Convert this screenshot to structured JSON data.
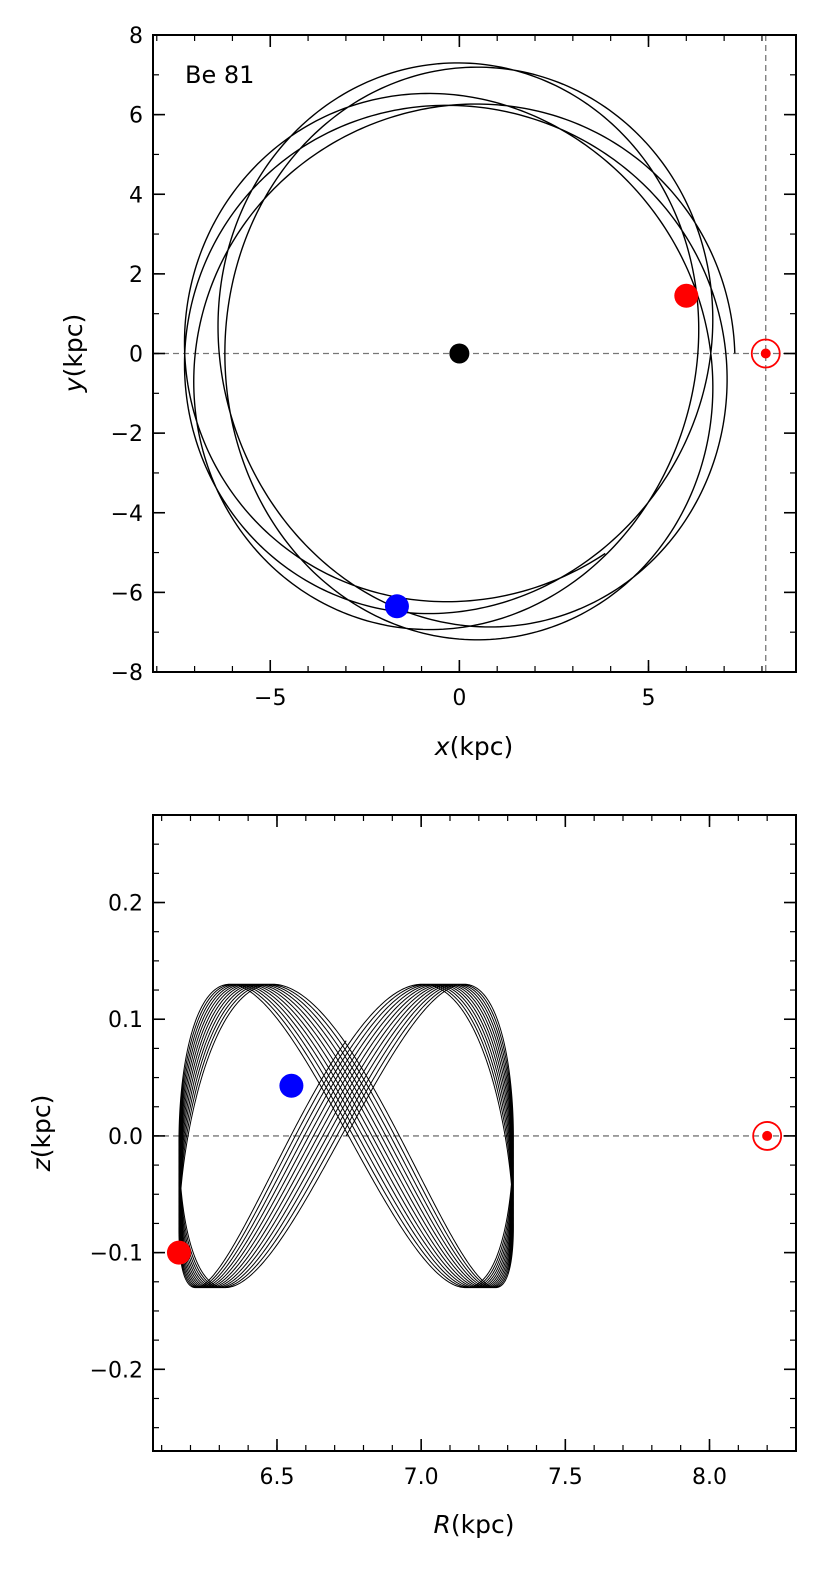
{
  "chart_data": [
    {
      "type": "line",
      "panel_label": "Be 81",
      "xlabel_var": "x",
      "xlabel_unit": "(kpc)",
      "ylabel_var": "y",
      "ylabel_unit": "(kpc)",
      "xlim": [
        -8.1,
        8.9
      ],
      "ylim": [
        -8,
        8
      ],
      "xticks": [
        -5,
        0,
        5
      ],
      "xtick_labels": [
        "−5",
        "0",
        "5"
      ],
      "yticks": [
        -8,
        -6,
        -4,
        -2,
        0,
        2,
        4,
        6,
        8
      ],
      "ytick_labels": [
        "−8",
        "−6",
        "−4",
        "−2",
        "0",
        "2",
        "4",
        "6",
        "8"
      ],
      "orbit": {
        "type": "rosette",
        "r_min": 6.2,
        "r_max": 7.3,
        "color": "#000000"
      },
      "galactic_center": {
        "x": 0,
        "y": 0,
        "color": "#000000"
      },
      "start_point": {
        "x": 6.0,
        "y": 1.45,
        "color": "#ff0000"
      },
      "end_point": {
        "x": -1.65,
        "y": -6.35,
        "color": "#0000ff"
      },
      "sun": {
        "x": 8.1,
        "y": 0,
        "color": "#ff0000"
      },
      "reference_lines": {
        "y0": true,
        "x_sun": 8.1,
        "color": "#777777",
        "style": "dashed"
      }
    },
    {
      "type": "line",
      "xlabel_var": "R",
      "xlabel_unit": "(kpc)",
      "ylabel_var": "z",
      "ylabel_unit": "(kpc)",
      "xlim": [
        6.07,
        8.3
      ],
      "ylim": [
        -0.27,
        0.275
      ],
      "xticks": [
        6.5,
        7.0,
        7.5,
        8.0
      ],
      "xtick_labels": [
        "6.5",
        "7.0",
        "7.5",
        "8.0"
      ],
      "yticks": [
        -0.2,
        -0.1,
        0.0,
        0.1,
        0.2
      ],
      "ytick_labels": [
        "−0.2",
        "−0.1",
        "0.0",
        "0.1",
        "0.2"
      ],
      "orbit": {
        "type": "figure-eight",
        "R_min": 6.16,
        "R_max": 7.32,
        "z_min": -0.13,
        "z_max": 0.13,
        "color": "#000000"
      },
      "start_point": {
        "R": 6.16,
        "z": -0.1,
        "color": "#ff0000"
      },
      "end_point": {
        "R": 6.55,
        "z": 0.043,
        "color": "#0000ff"
      },
      "sun": {
        "R": 8.2,
        "z": 0.0,
        "color": "#ff0000"
      },
      "reference_lines": {
        "z0": true,
        "color": "#777777",
        "style": "dashed"
      }
    }
  ]
}
